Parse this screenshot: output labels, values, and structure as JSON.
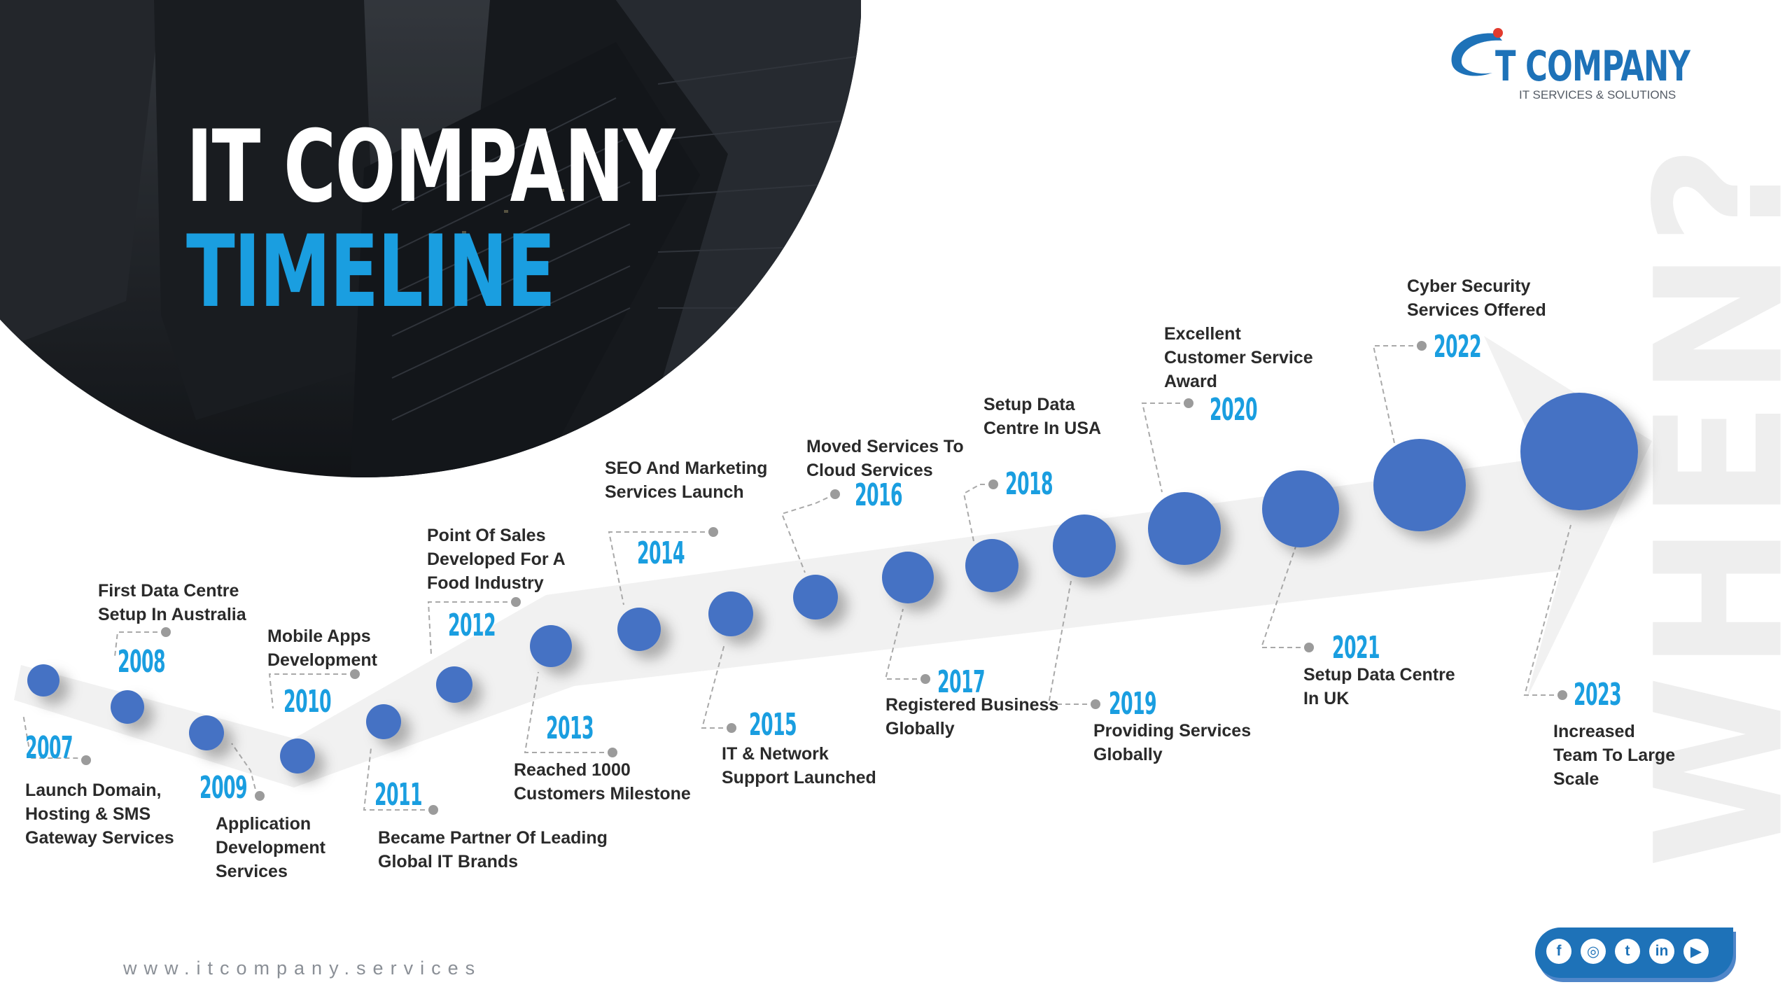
{
  "hero": {
    "title_line1": "IT COMPANY",
    "title_line2": "TIMELINE"
  },
  "logo": {
    "name": "T COMPANY",
    "tagline": "IT SERVICES & SOLUTIONS"
  },
  "watermark": "WHEN?",
  "website": "www.itcompany.services",
  "colors": {
    "accent": "#1a9ee0",
    "node": "#4472c4",
    "brand_blue": "#1e72b8",
    "dark_photo": "#2a2e34",
    "arrow": "#f1f1f1"
  },
  "milestones": [
    {
      "year": "2007",
      "lines": [
        "Launch Domain,",
        "Hosting & SMS",
        "Gateway Services"
      ]
    },
    {
      "year": "2008",
      "lines": [
        "First Data Centre",
        "Setup In Australia"
      ]
    },
    {
      "year": "2009",
      "lines": [
        "Application",
        "Development",
        "Services"
      ]
    },
    {
      "year": "2010",
      "lines": [
        "Mobile Apps",
        "Development"
      ]
    },
    {
      "year": "2011",
      "lines": [
        "Became Partner Of Leading",
        "Global IT Brands"
      ]
    },
    {
      "year": "2012",
      "lines": [
        "Point Of Sales",
        "Developed For A",
        "Food Industry"
      ]
    },
    {
      "year": "2013",
      "lines": [
        "Reached 1000",
        "Customers Milestone"
      ]
    },
    {
      "year": "2014",
      "lines": [
        "SEO And Marketing",
        "Services Launch"
      ]
    },
    {
      "year": "2015",
      "lines": [
        "IT & Network",
        "Support Launched"
      ]
    },
    {
      "year": "2016",
      "lines": [
        "Moved Services To",
        "Cloud Services"
      ]
    },
    {
      "year": "2017",
      "lines": [
        "Registered Business",
        "Globally"
      ]
    },
    {
      "year": "2018",
      "lines": [
        "Setup Data",
        "Centre In USA"
      ]
    },
    {
      "year": "2019",
      "lines": [
        "Providing Services",
        "Globally"
      ]
    },
    {
      "year": "2020",
      "lines": [
        "Excellent",
        "Customer Service",
        "Award"
      ]
    },
    {
      "year": "2021",
      "lines": [
        "Setup Data Centre",
        "In UK"
      ]
    },
    {
      "year": "2022",
      "lines": [
        "Cyber Security",
        "Services Offered"
      ]
    },
    {
      "year": "2023",
      "lines": [
        "Increased",
        "Team To Large",
        "Scale"
      ]
    }
  ],
  "social": [
    {
      "icon": "facebook-icon",
      "glyph": "f"
    },
    {
      "icon": "instagram-icon",
      "glyph": "◎"
    },
    {
      "icon": "twitter-icon",
      "glyph": "t"
    },
    {
      "icon": "linkedin-icon",
      "glyph": "in"
    },
    {
      "icon": "youtube-icon",
      "glyph": "▶"
    }
  ]
}
